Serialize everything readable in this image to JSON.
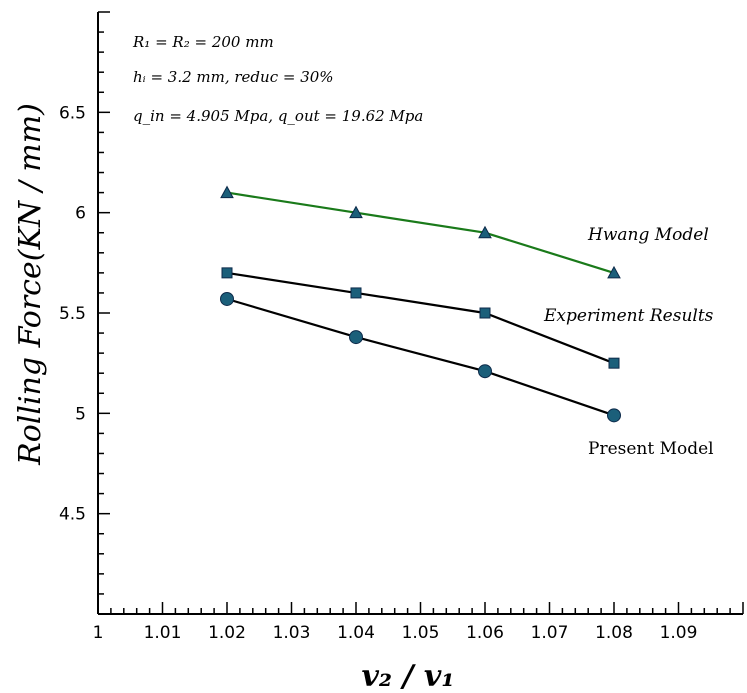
{
  "chart_data": {
    "type": "line",
    "xlabel": "v₂ / v₁",
    "ylabel": "Rolling Force(KN / mm)",
    "xlim": [
      1.0,
      1.1
    ],
    "ylim": [
      4.0,
      7.0
    ],
    "xticks": [
      "1",
      "1.01",
      "1.02",
      "1.03",
      "1.04",
      "1.05",
      "1.06",
      "1.07",
      "1.08",
      "1.09"
    ],
    "yticks": [
      "4.5",
      "5",
      "5.5",
      "6",
      "6.5"
    ],
    "grid": false,
    "annotations": [
      "R₁ = R₂ = 200 mm",
      "hᵢ = 3.2 mm, reduc = 30%",
      "q_in = 4.905 Mpa, q_out = 19.62 Mpa"
    ],
    "series": [
      {
        "name": "Hwang Model",
        "marker": "triangle",
        "color": "#1a7a1a",
        "x": [
          1.02,
          1.04,
          1.06,
          1.08
        ],
        "y": [
          6.1,
          6.0,
          5.9,
          5.7
        ]
      },
      {
        "name": "Experiment Results",
        "marker": "square",
        "color": "#000000",
        "x": [
          1.02,
          1.04,
          1.06,
          1.08
        ],
        "y": [
          5.7,
          5.6,
          5.5,
          5.25
        ]
      },
      {
        "name": "Present Model",
        "marker": "circle",
        "color": "#000000",
        "x": [
          1.02,
          1.04,
          1.06,
          1.08
        ],
        "y": [
          5.57,
          5.38,
          5.21,
          4.99
        ]
      }
    ],
    "marker_fill": "#1b5f7a",
    "marker_stroke": "#0d2a4a"
  }
}
